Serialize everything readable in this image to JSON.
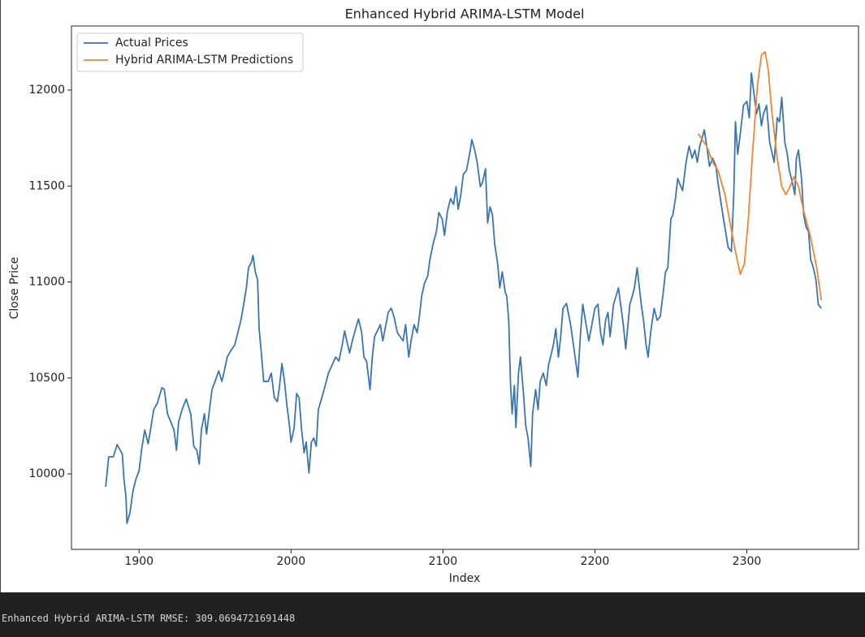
{
  "chart_data": {
    "type": "line",
    "title": "Enhanced Hybrid ARIMA-LSTM Model",
    "x_label": "Index",
    "y_label": "Close Price",
    "xlim": [
      1855.5,
      2373.5
    ],
    "ylim": [
      9607,
      12334
    ],
    "xticks": [
      1900,
      2000,
      2100,
      2200,
      2300
    ],
    "yticks": [
      10000,
      10500,
      11000,
      11500,
      12000
    ],
    "grid": false,
    "legend": "upper left",
    "series": [
      {
        "name": "Actual Prices",
        "color": "#3b75af",
        "x": [
          1878,
          1880,
          1883,
          1885.6,
          1889,
          1890,
          1891.4,
          1892,
          1894,
          1896,
          1898,
          1900,
          1901.6,
          1903.7,
          1906,
          1907.5,
          1909.6,
          1912,
          1915,
          1916.6,
          1918.7,
          1923,
          1924.6,
          1926,
          1928.3,
          1931,
          1934,
          1936,
          1938,
          1939.6,
          1941,
          1943,
          1944.4,
          1946,
          1948,
          1950,
          1952.4,
          1954.5,
          1956,
          1958,
          1960.4,
          1963,
          1965,
          1967,
          1968.4,
          1970.6,
          1972,
          1974,
          1975,
          1976.5,
          1978,
          1979,
          1980.7,
          1982,
          1985,
          1987,
          1989,
          1991,
          1992.5,
          1994,
          1995.7,
          1997.3,
          1999,
          2000,
          2002,
          2003.7,
          2005.3,
          2007,
          2008.6,
          2010,
          2011.8,
          2013.4,
          2015,
          2016.6,
          2018,
          2020.3,
          2022.5,
          2024.6,
          2027,
          2029.4,
          2031.5,
          2033.7,
          2035.3,
          2038.5,
          2040.6,
          2044.4,
          2046.5,
          2048,
          2049.7,
          2052,
          2053.5,
          2055,
          2058.8,
          2060.4,
          2064,
          2066,
          2068,
          2070,
          2073.8,
          2075.4,
          2077.5,
          2079,
          2081,
          2083,
          2084.5,
          2086,
          2087.7,
          2090,
          2091.4,
          2093.6,
          2095.7,
          2097.3,
          2099.5,
          2101,
          2103,
          2105,
          2107,
          2108.6,
          2110,
          2111.8,
          2113.4,
          2115.5,
          2118,
          2119,
          2120.9,
          2122.5,
          2124.6,
          2126,
          2128,
          2129.4,
          2131,
          2132.6,
          2134,
          2136,
          2137.4,
          2139,
          2141,
          2142,
          2143.3,
          2144.4,
          2145.5,
          2147,
          2148,
          2149.7,
          2151,
          2153,
          2154.5,
          2156,
          2157.8,
          2159,
          2161,
          2162.6,
          2164,
          2166,
          2168,
          2169.5,
          2172.7,
          2174.3,
          2176,
          2177.5,
          2179,
          2181.3,
          2184,
          2187,
          2188.8,
          2190.4,
          2192,
          2196,
          2200,
          2202,
          2203.7,
          2205.3,
          2207,
          2208.6,
          2210,
          2212.3,
          2215.5,
          2218.7,
          2220.3,
          2223,
          2224.6,
          2226,
          2227.8,
          2230.5,
          2232,
          2233.7,
          2235,
          2237,
          2239,
          2241,
          2243,
          2245,
          2246.5,
          2248,
          2250,
          2251.3,
          2253,
          2254.5,
          2257.7,
          2260,
          2262,
          2264,
          2265.8,
          2267.4,
          2269,
          2270.6,
          2272,
          2274,
          2275.4,
          2277.5,
          2279.7,
          2281,
          2283,
          2284.5,
          2286,
          2287.7,
          2289.8,
          2291.4,
          2292.5,
          2294,
          2295.7,
          2297.8,
          2300,
          2301.6,
          2303,
          2305,
          2306.4,
          2308,
          2309.6,
          2311,
          2313,
          2315,
          2318,
          2320,
          2321.5,
          2323,
          2325,
          2326.6,
          2328,
          2330,
          2331.6,
          2332.6,
          2334,
          2336,
          2337.4,
          2339,
          2340.6,
          2342,
          2343.8,
          2345.5,
          2347,
          2349
        ],
        "values": [
          9933,
          10089,
          10089,
          10153,
          10102,
          9975,
          9878,
          9743,
          9798,
          9912,
          9975,
          10017,
          10123,
          10229,
          10157,
          10229,
          10335,
          10368,
          10449,
          10440,
          10313,
          10229,
          10123,
          10271,
          10335,
          10390,
          10313,
          10144,
          10123,
          10051,
          10229,
          10313,
          10208,
          10313,
          10440,
          10482,
          10537,
          10482,
          10533,
          10609,
          10643,
          10673,
          10736,
          10800,
          10863,
          10969,
          11074,
          11104,
          11138,
          11053,
          11011,
          10757,
          10609,
          10482,
          10482,
          10525,
          10398,
          10377,
          10461,
          10575,
          10482,
          10356,
          10250,
          10166,
          10237,
          10419,
          10398,
          10229,
          10110,
          10166,
          10005,
          10166,
          10187,
          10144,
          10335,
          10398,
          10461,
          10525,
          10567,
          10609,
          10588,
          10673,
          10745,
          10630,
          10702,
          10808,
          10736,
          10609,
          10588,
          10440,
          10609,
          10715,
          10778,
          10693,
          10842,
          10863,
          10812,
          10736,
          10693,
          10778,
          10609,
          10693,
          10778,
          10736,
          10820,
          10926,
          10990,
          11032,
          11117,
          11201,
          11264,
          11362,
          11328,
          11243,
          11370,
          11434,
          11404,
          11497,
          11379,
          11455,
          11560,
          11582,
          11687,
          11742,
          11687,
          11624,
          11497,
          11518,
          11590,
          11307,
          11391,
          11349,
          11201,
          11095,
          10969,
          11053,
          10947,
          10926,
          10800,
          10482,
          10313,
          10461,
          10242,
          10525,
          10609,
          10419,
          10250,
          10187,
          10039,
          10313,
          10440,
          10335,
          10482,
          10525,
          10461,
          10567,
          10673,
          10757,
          10609,
          10715,
          10863,
          10888,
          10778,
          10609,
          10504,
          10715,
          10884,
          10693,
          10863,
          10884,
          10736,
          10673,
          10800,
          10842,
          10715,
          10884,
          10969,
          10778,
          10652,
          10884,
          10926,
          10969,
          11074,
          10884,
          10800,
          10673,
          10609,
          10757,
          10863,
          10800,
          10820,
          10947,
          11053,
          11074,
          11328,
          11349,
          11434,
          11539,
          11476,
          11624,
          11708,
          11645,
          11687,
          11624,
          11708,
          11751,
          11793,
          11687,
          11603,
          11645,
          11603,
          11518,
          11412,
          11336,
          11264,
          11180,
          11159,
          11455,
          11835,
          11666,
          11772,
          11920,
          11941,
          11856,
          12089,
          11962,
          11877,
          11928,
          11814,
          11877,
          11920,
          11729,
          11624,
          11856,
          11835,
          11962,
          11729,
          11666,
          11582,
          11518,
          11455,
          11645,
          11687,
          11539,
          11349,
          11286,
          11264,
          11117,
          11074,
          11011,
          10884,
          10863
        ]
      },
      {
        "name": "Hybrid ARIMA-LSTM Predictions",
        "color": "#ef8636",
        "x": [
          2268,
          2273.6,
          2277.5,
          2281,
          2285.6,
          2289,
          2292.5,
          2295.7,
          2298.4,
          2301,
          2303.7,
          2307,
          2309.6,
          2312,
          2314,
          2316.6,
          2320,
          2323,
          2325.7,
          2328.4,
          2331,
          2334,
          2337.4,
          2341.7,
          2346,
          2349
        ],
        "values": [
          11772,
          11708,
          11624,
          11582,
          11455,
          11307,
          11159,
          11040,
          11095,
          11328,
          11666,
          12025,
          12182,
          12199,
          12110,
          11877,
          11645,
          11497,
          11455,
          11497,
          11548,
          11497,
          11370,
          11243,
          11074,
          10905
        ]
      }
    ]
  },
  "console": {
    "output": "Enhanced Hybrid ARIMA-LSTM RMSE: 309.0694721691448"
  }
}
